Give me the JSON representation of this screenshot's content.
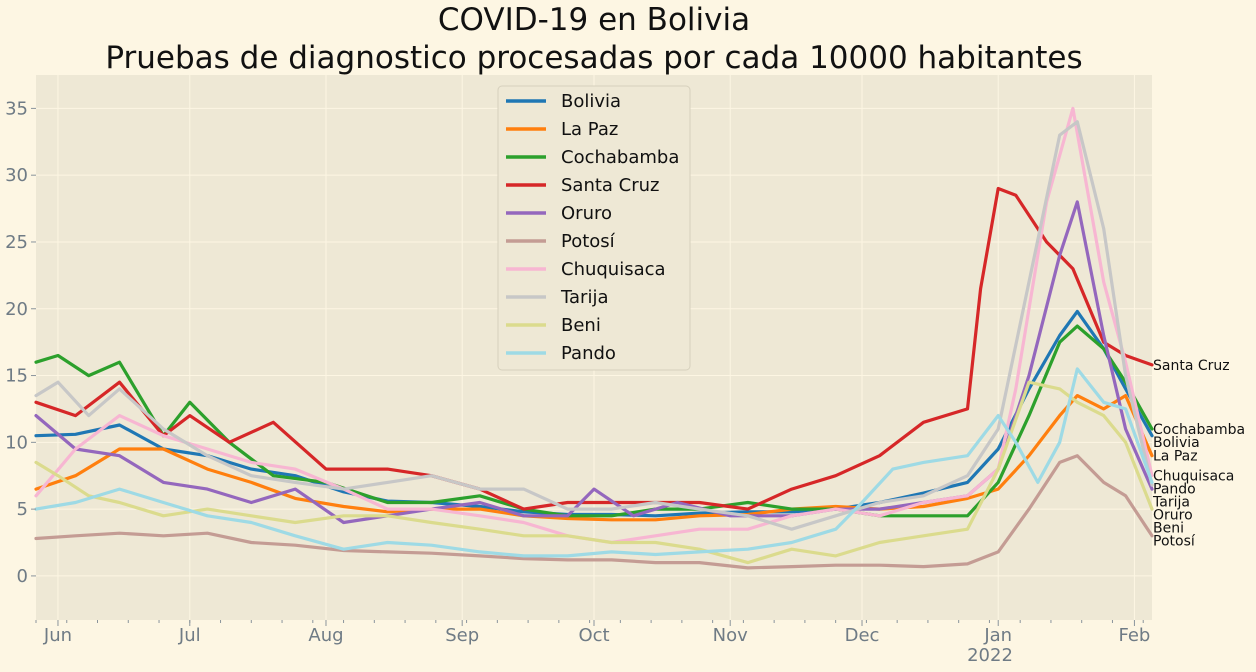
{
  "chart_data": {
    "type": "line",
    "title_line1": "COVID-19 en Bolivia",
    "title_line2": "Pruebas de diagnostico procesadas por cada 10000 habitantes",
    "xlabel": "",
    "ylabel": "",
    "x_range": [
      "2021-05-27",
      "2022-02-05"
    ],
    "y_range": [
      -3.3,
      37.5
    ],
    "y_ticks": [
      0,
      5,
      10,
      15,
      20,
      25,
      30,
      35
    ],
    "x_ticks": [
      {
        "date": "2021-06-01",
        "label": "Jun"
      },
      {
        "date": "2021-07-01",
        "label": "Jul"
      },
      {
        "date": "2021-08-01",
        "label": "Aug"
      },
      {
        "date": "2021-09-01",
        "label": "Sep"
      },
      {
        "date": "2021-10-01",
        "label": "Oct"
      },
      {
        "date": "2021-11-01",
        "label": "Nov"
      },
      {
        "date": "2021-12-01",
        "label": "Dec"
      },
      {
        "date": "2022-01-01",
        "label": "Jan"
      },
      {
        "date": "2022-02-01",
        "label": "Feb"
      }
    ],
    "year_label": "2022",
    "grid": true,
    "legend_position": "top-center",
    "series": [
      {
        "name": "Bolivia",
        "color": "#1f77b4",
        "end_label": "Bolivia",
        "dates": [
          "2021-05-27",
          "2021-06-05",
          "2021-06-15",
          "2021-06-25",
          "2021-07-05",
          "2021-07-15",
          "2021-07-25",
          "2021-08-05",
          "2021-08-15",
          "2021-08-25",
          "2021-09-05",
          "2021-09-15",
          "2021-09-25",
          "2021-10-05",
          "2021-10-15",
          "2021-10-25",
          "2021-11-05",
          "2021-11-15",
          "2021-11-25",
          "2021-12-05",
          "2021-12-15",
          "2021-12-25",
          "2022-01-01",
          "2022-01-08",
          "2022-01-15",
          "2022-01-19",
          "2022-01-25",
          "2022-01-30",
          "2022-02-05"
        ],
        "values": [
          10.5,
          10.6,
          11.3,
          9.5,
          9.0,
          8.0,
          7.5,
          6.3,
          5.6,
          5.5,
          5.2,
          4.8,
          4.6,
          4.6,
          4.5,
          4.7,
          4.8,
          4.8,
          5.0,
          5.5,
          6.2,
          7.0,
          9.5,
          14.0,
          18.0,
          19.8,
          17.0,
          14.0,
          10.5
        ]
      },
      {
        "name": "La Paz",
        "color": "#ff7f0e",
        "end_label": "La Paz",
        "dates": [
          "2021-05-27",
          "2021-06-05",
          "2021-06-15",
          "2021-06-25",
          "2021-07-05",
          "2021-07-15",
          "2021-07-25",
          "2021-08-05",
          "2021-08-15",
          "2021-08-25",
          "2021-09-05",
          "2021-09-15",
          "2021-09-25",
          "2021-10-05",
          "2021-10-15",
          "2021-10-25",
          "2021-11-05",
          "2021-11-15",
          "2021-11-25",
          "2021-12-05",
          "2021-12-15",
          "2021-12-25",
          "2022-01-01",
          "2022-01-08",
          "2022-01-15",
          "2022-01-19",
          "2022-01-25",
          "2022-01-30",
          "2022-02-05"
        ],
        "values": [
          6.5,
          7.5,
          9.5,
          9.5,
          8.0,
          7.0,
          5.8,
          5.2,
          4.8,
          5.0,
          5.0,
          4.5,
          4.3,
          4.2,
          4.2,
          4.5,
          4.6,
          5.0,
          5.2,
          5.0,
          5.2,
          5.8,
          6.5,
          9.0,
          12.0,
          13.5,
          12.5,
          13.5,
          9.0
        ]
      },
      {
        "name": "Cochabamba",
        "color": "#2ca02c",
        "end_label": "Cochabamba",
        "dates": [
          "2021-05-27",
          "2021-06-01",
          "2021-06-08",
          "2021-06-15",
          "2021-06-25",
          "2021-07-01",
          "2021-07-10",
          "2021-07-20",
          "2021-08-01",
          "2021-08-15",
          "2021-08-25",
          "2021-09-05",
          "2021-09-15",
          "2021-09-25",
          "2021-10-05",
          "2021-10-15",
          "2021-10-25",
          "2021-11-05",
          "2021-11-15",
          "2021-11-25",
          "2021-12-05",
          "2021-12-15",
          "2021-12-25",
          "2022-01-01",
          "2022-01-08",
          "2022-01-15",
          "2022-01-19",
          "2022-01-25",
          "2022-01-30",
          "2022-02-05"
        ],
        "values": [
          16.0,
          16.5,
          15.0,
          16.0,
          10.5,
          13.0,
          10.0,
          7.5,
          7.0,
          5.5,
          5.5,
          6.0,
          5.0,
          4.5,
          4.5,
          5.0,
          5.0,
          5.5,
          5.0,
          5.0,
          4.5,
          4.5,
          4.5,
          7.0,
          12.0,
          17.5,
          18.7,
          17.0,
          14.5,
          11.0
        ]
      },
      {
        "name": "Santa Cruz",
        "color": "#d62728",
        "end_label": "Santa Cruz",
        "dates": [
          "2021-05-27",
          "2021-06-05",
          "2021-06-15",
          "2021-06-25",
          "2021-07-01",
          "2021-07-10",
          "2021-07-20",
          "2021-08-01",
          "2021-08-15",
          "2021-08-25",
          "2021-09-05",
          "2021-09-15",
          "2021-09-25",
          "2021-10-05",
          "2021-10-15",
          "2021-10-25",
          "2021-11-05",
          "2021-11-15",
          "2021-11-25",
          "2021-12-05",
          "2021-12-15",
          "2021-12-25",
          "2021-12-28",
          "2022-01-01",
          "2022-01-05",
          "2022-01-12",
          "2022-01-18",
          "2022-01-25",
          "2022-01-30",
          "2022-02-05"
        ],
        "values": [
          13.0,
          12.0,
          14.5,
          10.5,
          12.0,
          10.0,
          11.5,
          8.0,
          8.0,
          7.5,
          6.5,
          5.0,
          5.5,
          5.5,
          5.5,
          5.5,
          5.0,
          6.5,
          7.5,
          9.0,
          11.5,
          12.5,
          21.5,
          29.0,
          28.5,
          25.0,
          23.0,
          17.5,
          16.5,
          15.8
        ]
      },
      {
        "name": "Oruro",
        "color": "#9467bd",
        "end_label": "Oruro",
        "dates": [
          "2021-05-27",
          "2021-06-05",
          "2021-06-15",
          "2021-06-25",
          "2021-07-05",
          "2021-07-15",
          "2021-07-25",
          "2021-08-05",
          "2021-08-15",
          "2021-08-25",
          "2021-09-05",
          "2021-09-15",
          "2021-09-25",
          "2021-10-01",
          "2021-10-10",
          "2021-10-20",
          "2021-11-01",
          "2021-11-15",
          "2021-11-25",
          "2021-12-05",
          "2021-12-15",
          "2021-12-25",
          "2022-01-01",
          "2022-01-08",
          "2022-01-15",
          "2022-01-19",
          "2022-01-25",
          "2022-01-30",
          "2022-02-05"
        ],
        "values": [
          12.0,
          9.5,
          9.0,
          7.0,
          6.5,
          5.5,
          6.5,
          4.0,
          4.5,
          5.0,
          5.5,
          4.5,
          4.5,
          6.5,
          4.5,
          5.5,
          4.5,
          4.5,
          5.0,
          5.0,
          5.5,
          6.0,
          8.0,
          15.0,
          24.0,
          28.0,
          18.0,
          11.0,
          6.5
        ]
      },
      {
        "name": "Potosí",
        "color": "#c49c94",
        "end_label": "Potosí",
        "dates": [
          "2021-05-27",
          "2021-06-05",
          "2021-06-15",
          "2021-06-25",
          "2021-07-05",
          "2021-07-15",
          "2021-07-25",
          "2021-08-05",
          "2021-08-15",
          "2021-08-25",
          "2021-09-05",
          "2021-09-15",
          "2021-09-25",
          "2021-10-05",
          "2021-10-15",
          "2021-10-25",
          "2021-11-05",
          "2021-11-15",
          "2021-11-25",
          "2021-12-05",
          "2021-12-15",
          "2021-12-25",
          "2022-01-01",
          "2022-01-08",
          "2022-01-15",
          "2022-01-19",
          "2022-01-25",
          "2022-01-30",
          "2022-02-05"
        ],
        "values": [
          2.8,
          3.0,
          3.2,
          3.0,
          3.2,
          2.5,
          2.3,
          1.9,
          1.8,
          1.7,
          1.5,
          1.3,
          1.2,
          1.2,
          1.0,
          1.0,
          0.6,
          0.7,
          0.8,
          0.8,
          0.7,
          0.9,
          1.8,
          5.0,
          8.5,
          9.0,
          7.0,
          6.0,
          3.0
        ]
      },
      {
        "name": "Chuquisaca",
        "color": "#f7b6d2",
        "end_label": "Chuquisaca",
        "dates": [
          "2021-05-27",
          "2021-06-05",
          "2021-06-15",
          "2021-06-25",
          "2021-07-05",
          "2021-07-15",
          "2021-07-25",
          "2021-08-05",
          "2021-08-15",
          "2021-08-25",
          "2021-09-05",
          "2021-09-15",
          "2021-09-25",
          "2021-10-05",
          "2021-10-15",
          "2021-10-25",
          "2021-11-05",
          "2021-11-15",
          "2021-11-25",
          "2021-12-05",
          "2021-12-15",
          "2021-12-25",
          "2022-01-01",
          "2022-01-05",
          "2022-01-12",
          "2022-01-18",
          "2022-01-25",
          "2022-01-30",
          "2022-02-05"
        ],
        "values": [
          6.0,
          9.5,
          12.0,
          10.5,
          9.5,
          8.5,
          8.0,
          6.5,
          5.0,
          5.0,
          4.5,
          4.0,
          3.0,
          2.5,
          3.0,
          3.5,
          3.5,
          4.5,
          5.0,
          4.5,
          5.5,
          6.0,
          8.0,
          14.0,
          28.0,
          35.0,
          22.0,
          16.0,
          7.5
        ]
      },
      {
        "name": "Tarija",
        "color": "#c7c7c7",
        "end_label": "Tarija",
        "dates": [
          "2021-05-27",
          "2021-06-01",
          "2021-06-08",
          "2021-06-15",
          "2021-06-25",
          "2021-07-05",
          "2021-07-15",
          "2021-07-25",
          "2021-08-05",
          "2021-08-15",
          "2021-08-25",
          "2021-09-05",
          "2021-09-15",
          "2021-09-25",
          "2021-10-05",
          "2021-10-15",
          "2021-10-25",
          "2021-11-05",
          "2021-11-15",
          "2021-11-25",
          "2021-12-05",
          "2021-12-15",
          "2021-12-25",
          "2022-01-01",
          "2022-01-08",
          "2022-01-15",
          "2022-01-19",
          "2022-01-25",
          "2022-01-30",
          "2022-02-05"
        ],
        "values": [
          13.5,
          14.5,
          12.0,
          14.0,
          11.0,
          9.0,
          7.5,
          7.0,
          6.5,
          7.0,
          7.5,
          6.5,
          6.5,
          5.0,
          5.0,
          5.5,
          5.0,
          4.5,
          3.5,
          4.5,
          5.5,
          6.0,
          7.5,
          11.0,
          22.0,
          33.0,
          34.0,
          26.0,
          15.0,
          6.8
        ]
      },
      {
        "name": "Beni",
        "color": "#dbdb8d",
        "end_label": "Beni",
        "dates": [
          "2021-05-27",
          "2021-06-01",
          "2021-06-08",
          "2021-06-15",
          "2021-06-25",
          "2021-07-05",
          "2021-07-15",
          "2021-07-25",
          "2021-08-05",
          "2021-08-15",
          "2021-08-25",
          "2021-09-05",
          "2021-09-15",
          "2021-09-25",
          "2021-10-05",
          "2021-10-15",
          "2021-10-25",
          "2021-11-05",
          "2021-11-15",
          "2021-11-25",
          "2021-12-05",
          "2021-12-15",
          "2021-12-25",
          "2022-01-01",
          "2022-01-08",
          "2022-01-15",
          "2022-01-19",
          "2022-01-25",
          "2022-01-30",
          "2022-02-05"
        ],
        "values": [
          8.5,
          7.5,
          6.0,
          5.5,
          4.5,
          5.0,
          4.5,
          4.0,
          4.5,
          4.5,
          4.0,
          3.5,
          3.0,
          3.0,
          2.5,
          2.5,
          2.0,
          1.0,
          2.0,
          1.5,
          2.5,
          3.0,
          3.5,
          8.0,
          14.5,
          14.0,
          13.0,
          12.0,
          10.0,
          5.0
        ]
      },
      {
        "name": "Pando",
        "color": "#9edae5",
        "end_label": "Pando",
        "dates": [
          "2021-05-27",
          "2021-06-05",
          "2021-06-15",
          "2021-06-25",
          "2021-07-05",
          "2021-07-15",
          "2021-07-25",
          "2021-08-05",
          "2021-08-15",
          "2021-08-25",
          "2021-09-05",
          "2021-09-15",
          "2021-09-25",
          "2021-10-05",
          "2021-10-15",
          "2021-10-25",
          "2021-11-05",
          "2021-11-15",
          "2021-11-25",
          "2021-12-01",
          "2021-12-08",
          "2021-12-15",
          "2021-12-25",
          "2022-01-01",
          "2022-01-05",
          "2022-01-10",
          "2022-01-15",
          "2022-01-19",
          "2022-01-25",
          "2022-01-30",
          "2022-02-05"
        ],
        "values": [
          5.0,
          5.5,
          6.5,
          5.5,
          4.5,
          4.0,
          3.0,
          2.0,
          2.5,
          2.3,
          1.8,
          1.5,
          1.5,
          1.8,
          1.6,
          1.8,
          2.0,
          2.5,
          3.5,
          5.5,
          8.0,
          8.5,
          9.0,
          12.0,
          10.0,
          7.0,
          10.0,
          15.5,
          13.0,
          12.5,
          7.0
        ]
      }
    ]
  }
}
